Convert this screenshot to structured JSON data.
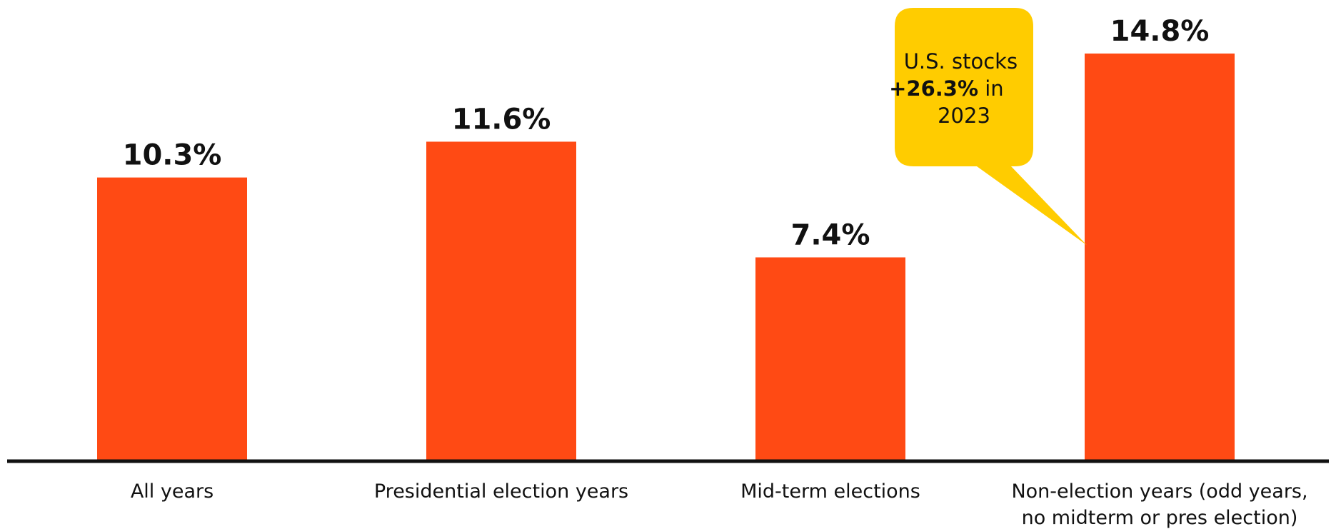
{
  "chart_data": {
    "type": "bar",
    "title": "",
    "xlabel": "",
    "ylabel": "",
    "categories": [
      [
        "All years"
      ],
      [
        "Presidential election years"
      ],
      [
        "Mid-term elections"
      ],
      [
        "Non-election years (odd years,",
        "no midterm or pres election)"
      ]
    ],
    "values": [
      10.3,
      11.6,
      7.4,
      14.8
    ],
    "value_labels": [
      "10.3%",
      "11.6%",
      "7.4%",
      "14.8%"
    ],
    "ylim": [
      0,
      15.5
    ],
    "grid": false,
    "legend": "none",
    "annotation": {
      "target_category_index": 3,
      "line1": "U.S. stocks",
      "line2_bold": "+26.3%",
      "line2_rest": " in",
      "line3": "2023"
    }
  },
  "colors": {
    "bar": "#FF4A14",
    "callout": "#FFCC00",
    "axis": "#111111",
    "text": "#111111"
  }
}
